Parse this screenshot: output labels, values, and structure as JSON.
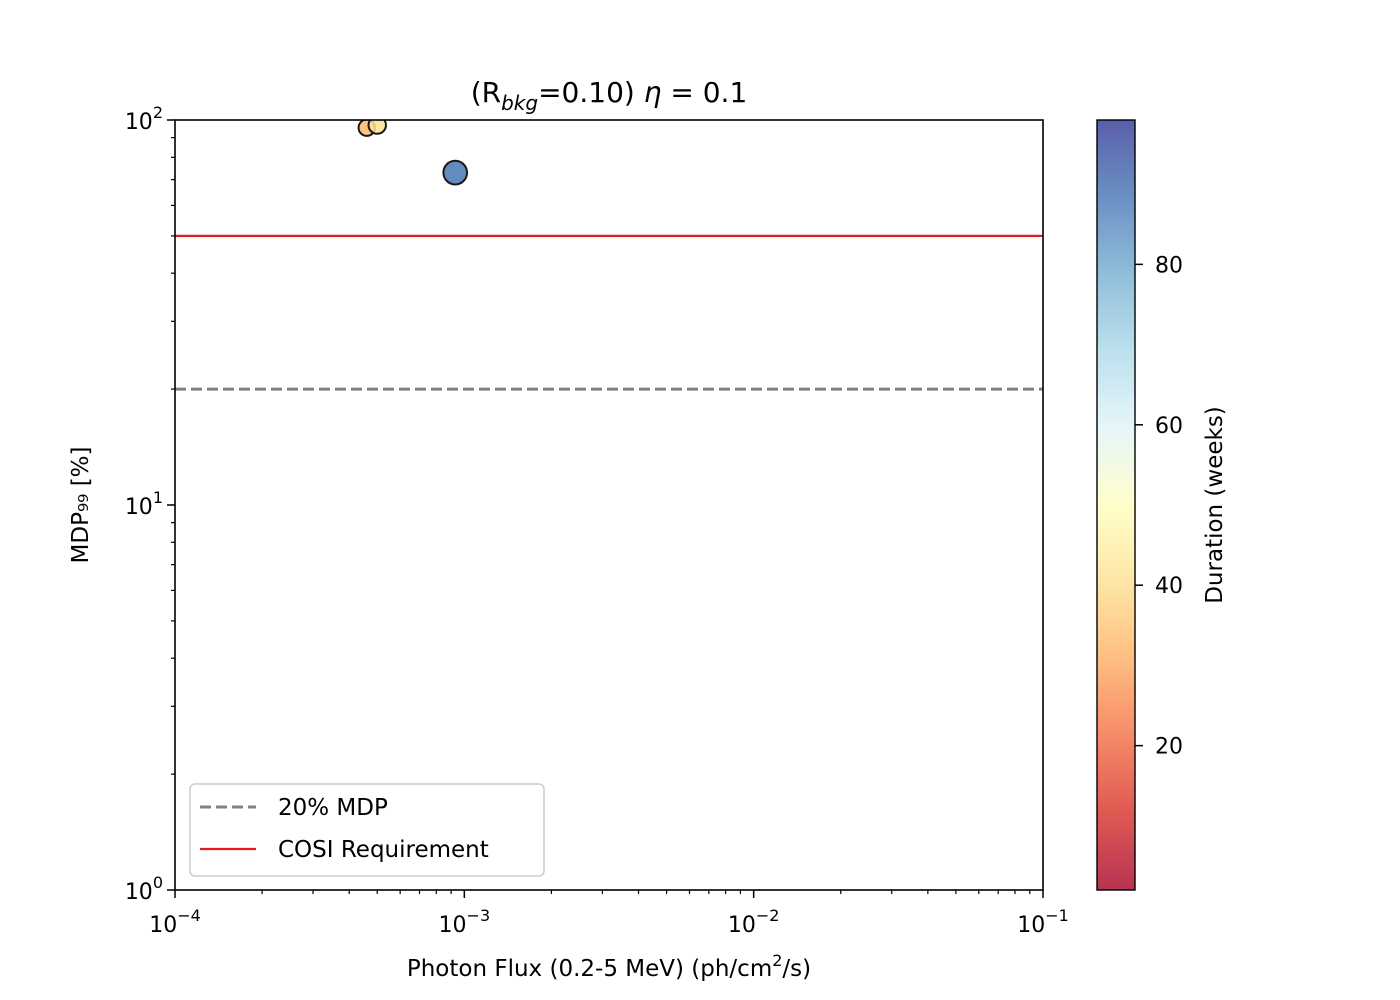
{
  "chart_data": {
    "type": "scatter",
    "title_parts": {
      "pre": "(R",
      "sub": "bkg",
      "mid": "=0.10) ",
      "eta": "η",
      "post": " = 0.1"
    },
    "xlabel_parts": {
      "pre": "Photon Flux (0.2-5 MeV) (ph/cm",
      "sup": "2",
      "post": "/s)"
    },
    "ylabel": "MDP₉₉ [%]",
    "xscale": "log",
    "yscale": "log",
    "xlim": [
      0.0001,
      0.1
    ],
    "ylim": [
      1,
      100
    ],
    "x_ticks": [
      {
        "value": 0.0001,
        "base": "10",
        "exp": "−4"
      },
      {
        "value": 0.001,
        "base": "10",
        "exp": "−3"
      },
      {
        "value": 0.01,
        "base": "10",
        "exp": "−2"
      },
      {
        "value": 0.1,
        "base": "10",
        "exp": "−1"
      }
    ],
    "y_ticks": [
      {
        "value": 1,
        "base": "10",
        "exp": "0"
      },
      {
        "value": 10,
        "base": "10",
        "exp": "1"
      },
      {
        "value": 100,
        "base": "10",
        "exp": "2"
      }
    ],
    "points": [
      {
        "x": 0.00046,
        "y": 95.5,
        "duration": 33
      },
      {
        "x": 0.0005,
        "y": 97,
        "duration": 41
      },
      {
        "x": 0.00093,
        "y": 73,
        "duration": 88
      }
    ],
    "hlines": [
      {
        "y": 20,
        "label": "20% MDP",
        "color": "#808080",
        "style": "dashed"
      },
      {
        "y": 50,
        "label": "COSI Requirement",
        "color": "#e41a1c",
        "style": "solid"
      }
    ],
    "legend": {
      "position": "lower-left",
      "entries": [
        "20% MDP",
        "COSI Requirement"
      ]
    },
    "colorbar": {
      "label": "Duration (weeks)",
      "range": [
        2,
        98
      ],
      "ticks": [
        20,
        40,
        60,
        80
      ],
      "colormap": "RdYlBu",
      "colors": [
        "#a50026",
        "#d73027",
        "#f46d43",
        "#fdae61",
        "#fee090",
        "#ffffbf",
        "#e0f3f8",
        "#abd9e9",
        "#74add1",
        "#4575b4",
        "#313695"
      ]
    }
  }
}
